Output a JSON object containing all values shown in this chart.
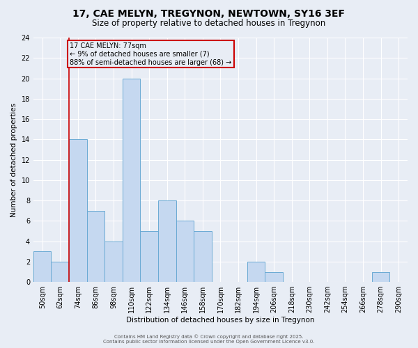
{
  "title": "17, CAE MELYN, TREGYNON, NEWTOWN, SY16 3EF",
  "subtitle": "Size of property relative to detached houses in Tregynon",
  "xlabel": "Distribution of detached houses by size in Tregynon",
  "ylabel": "Number of detached properties",
  "bar_labels": [
    "50sqm",
    "62sqm",
    "74sqm",
    "86sqm",
    "98sqm",
    "110sqm",
    "122sqm",
    "134sqm",
    "146sqm",
    "158sqm",
    "170sqm",
    "182sqm",
    "194sqm",
    "206sqm",
    "218sqm",
    "230sqm",
    "242sqm",
    "254sqm",
    "266sqm",
    "278sqm",
    "290sqm"
  ],
  "bar_values": [
    3,
    2,
    14,
    7,
    4,
    20,
    5,
    8,
    6,
    5,
    0,
    0,
    2,
    1,
    0,
    0,
    0,
    0,
    0,
    1,
    0
  ],
  "bar_color": "#c5d8f0",
  "bar_edge_color": "#6aaad4",
  "background_color": "#e8edf5",
  "grid_color": "#ffffff",
  "annotation_text": "17 CAE MELYN: 77sqm\n← 9% of detached houses are smaller (7)\n88% of semi-detached houses are larger (68) →",
  "annotation_box_color": "#cc0000",
  "red_line_x": 2.5,
  "ylim": [
    0,
    24
  ],
  "yticks": [
    0,
    2,
    4,
    6,
    8,
    10,
    12,
    14,
    16,
    18,
    20,
    22,
    24
  ],
  "footer_text": "Contains HM Land Registry data © Crown copyright and database right 2025.\nContains public sector information licensed under the Open Government Licence v3.0.",
  "title_fontsize": 10,
  "subtitle_fontsize": 8.5,
  "axis_label_fontsize": 7.5,
  "tick_fontsize": 7,
  "annotation_fontsize": 7,
  "footer_fontsize": 5
}
